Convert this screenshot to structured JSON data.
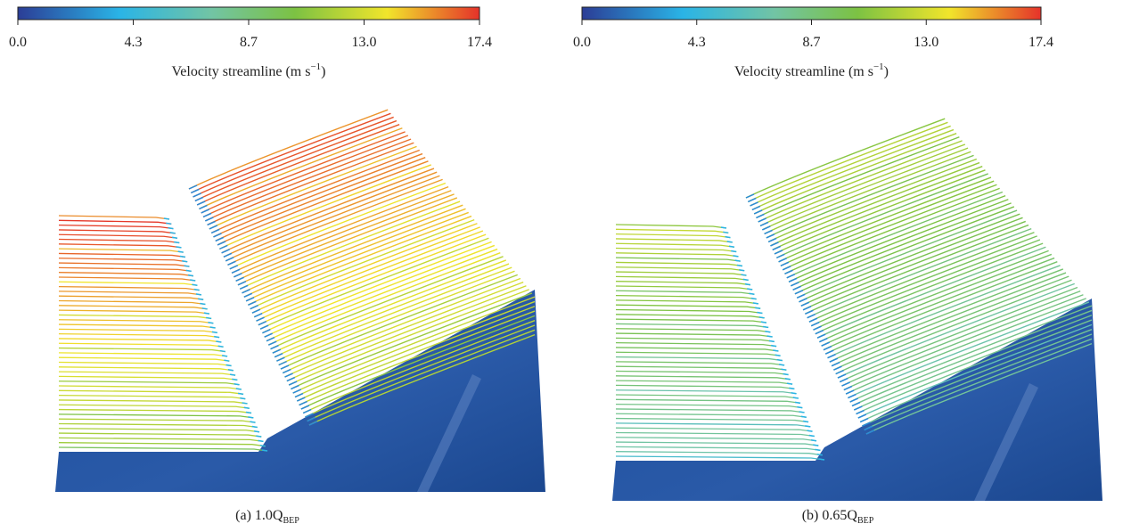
{
  "panels": [
    {
      "colorbar": {
        "ticks": [
          "0.0",
          "4.3",
          "8.7",
          "13.0",
          "17.4"
        ],
        "label": {
          "text": "Velocity streamline (m s",
          "superscript": "−1",
          "end": ")"
        }
      },
      "caption": {
        "text": "(a) 1.0Q",
        "subscript": "BEP"
      }
    },
    {
      "colorbar": {
        "ticks": [
          "0.0",
          "4.3",
          "8.7",
          "13.0",
          "17.4"
        ],
        "label": {
          "text": "Velocity streamline (m s",
          "superscript": "−1",
          "end": ")"
        }
      },
      "caption": {
        "text": "(b) 0.65Q",
        "subscript": "BEP"
      }
    }
  ]
}
